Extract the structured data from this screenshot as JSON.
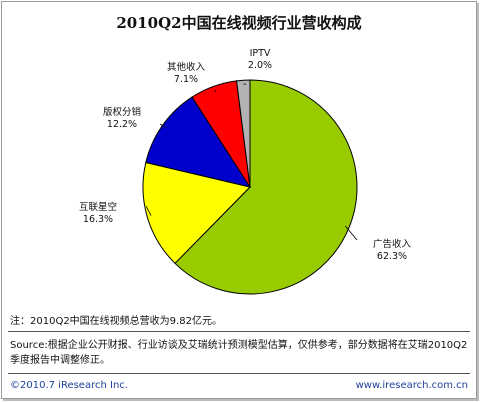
{
  "chart_data": {
    "type": "pie",
    "title": "2010Q2中国在线视频行业营收构成",
    "slices": [
      {
        "name": "广告收入",
        "value_label": "62.3%",
        "value": 62.3,
        "color": "#99cc00"
      },
      {
        "name": "互联星空",
        "value_label": "16.3%",
        "value": 16.3,
        "color": "#ffff00"
      },
      {
        "name": "版权分销",
        "value_label": "12.2%",
        "value": 12.2,
        "color": "#0000cc"
      },
      {
        "name": "其他收入",
        "value_label": "7.1%",
        "value": 7.1,
        "color": "#ff0000"
      },
      {
        "name": "IPTV",
        "value_label": "2.0%",
        "value": 2.0,
        "color": "#b3b3b3"
      }
    ]
  },
  "note": "注：2010Q2中国在线视频总营收为9.82亿元。",
  "source": "Source:根据企业公开财报、行业访谈及艾瑞统计预测模型估算，仅供参考，部分数据将在艾瑞2010Q2季度报告中调整修正。",
  "footer": {
    "copyright": "©2010.7 iResearch Inc.",
    "website": "www.iresearch.com.cn"
  }
}
